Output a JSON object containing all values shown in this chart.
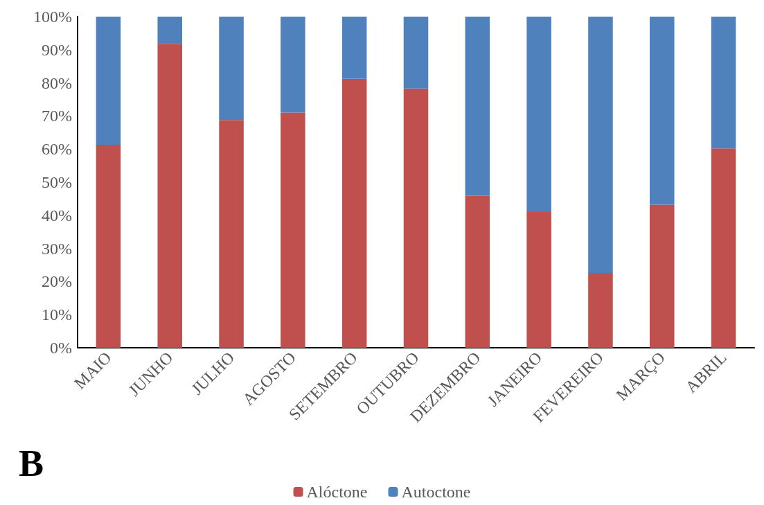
{
  "chart_data": {
    "type": "bar",
    "title": "B",
    "stacked": true,
    "categories": [
      "MAIO",
      "JUNHO",
      "JULHO",
      "AGOSTO",
      "SETEMBRO",
      "OUTUBRO",
      "DEZEMBRO",
      "JANEIRO",
      "FEVEREIRO",
      "MARÇO",
      "ABRIL"
    ],
    "series": [
      {
        "name": "Alóctone",
        "color": "#c0504d",
        "values": [
          61.3,
          91.8,
          68.8,
          71.0,
          81.2,
          78.3,
          45.9,
          41.0,
          22.6,
          43.2,
          60.2
        ]
      },
      {
        "name": "Autoctone",
        "color": "#4f81bd",
        "values": [
          38.7,
          8.2,
          31.2,
          29.0,
          18.8,
          21.7,
          54.1,
          59.0,
          77.4,
          56.8,
          39.8
        ]
      }
    ],
    "ylim": [
      0,
      100
    ],
    "yticks": [
      {
        "value": 0,
        "label": "0%"
      },
      {
        "value": 10,
        "label": "10%"
      },
      {
        "value": 20,
        "label": "20%"
      },
      {
        "value": 30,
        "label": "30%"
      },
      {
        "value": 40,
        "label": "40%"
      },
      {
        "value": 50,
        "label": "50%"
      },
      {
        "value": 60,
        "label": "60%"
      },
      {
        "value": 70,
        "label": "70%"
      },
      {
        "value": 80,
        "label": "80%"
      },
      {
        "value": 90,
        "label": "90%"
      },
      {
        "value": 100,
        "label": "100%"
      }
    ],
    "grid": false,
    "legend": "bottom"
  }
}
